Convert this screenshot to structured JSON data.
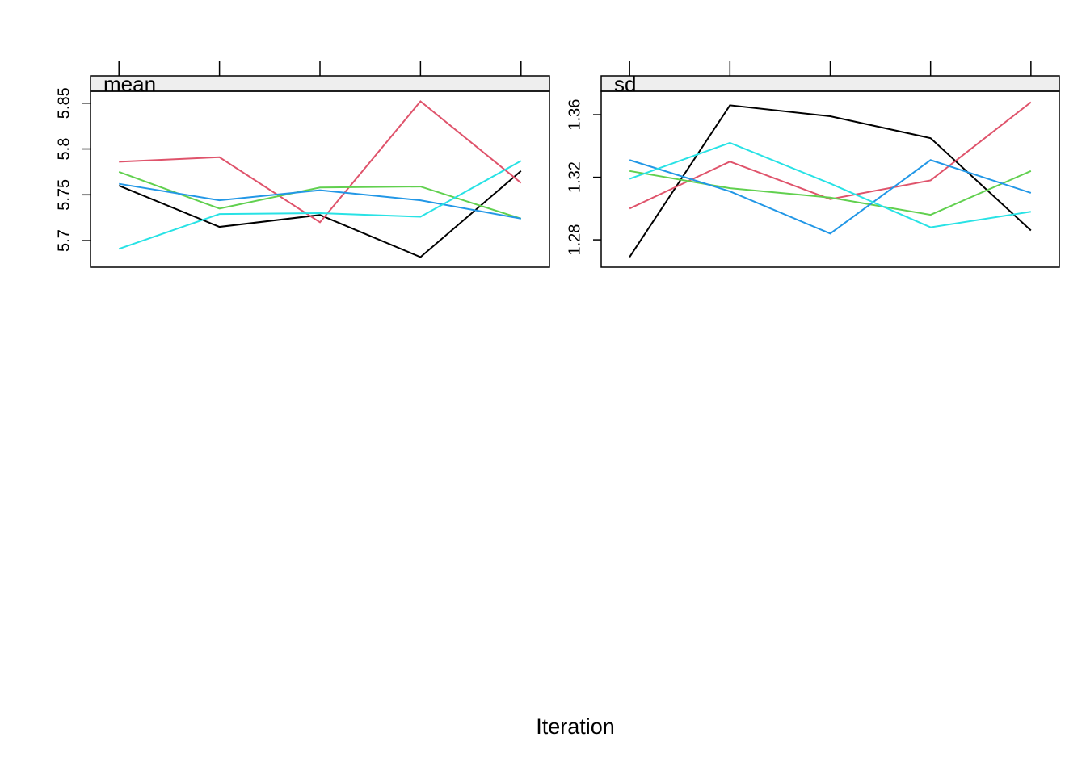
{
  "chart_data": [
    {
      "type": "line",
      "title": "mean",
      "categories": [
        null,
        null,
        null,
        null,
        null
      ],
      "ylim": [
        5.671,
        5.863
      ],
      "yticks": [
        5.7,
        5.75,
        5.8,
        5.85
      ],
      "series": [
        {
          "color": "#000000",
          "values": [
            5.76,
            5.715,
            5.728,
            5.682,
            5.776
          ]
        },
        {
          "color": "#DF536B",
          "values": [
            5.786,
            5.791,
            5.72,
            5.852,
            5.763
          ]
        },
        {
          "color": "#61D04F",
          "values": [
            5.775,
            5.735,
            5.758,
            5.759,
            5.724
          ]
        },
        {
          "color": "#2297E6",
          "values": [
            5.762,
            5.744,
            5.755,
            5.744,
            5.724
          ]
        },
        {
          "color": "#28E2E5",
          "values": [
            5.691,
            5.729,
            5.73,
            5.726,
            5.787
          ]
        }
      ]
    },
    {
      "type": "line",
      "title": "sd",
      "categories": [
        null,
        null,
        null,
        null,
        null
      ],
      "ylim": [
        1.2625,
        1.375
      ],
      "yticks": [
        1.28,
        1.32,
        1.36
      ],
      "series": [
        {
          "color": "#000000",
          "values": [
            1.269,
            1.366,
            1.359,
            1.345,
            1.286
          ]
        },
        {
          "color": "#DF536B",
          "values": [
            1.3,
            1.33,
            1.306,
            1.318,
            1.368
          ]
        },
        {
          "color": "#61D04F",
          "values": [
            1.324,
            1.313,
            1.307,
            1.296,
            1.324
          ]
        },
        {
          "color": "#2297E6",
          "values": [
            1.331,
            1.311,
            1.284,
            1.331,
            1.31
          ]
        },
        {
          "color": "#28E2E5",
          "values": [
            1.319,
            1.342,
            1.316,
            1.288,
            1.298
          ]
        }
      ]
    }
  ],
  "xlabel": "Iteration"
}
